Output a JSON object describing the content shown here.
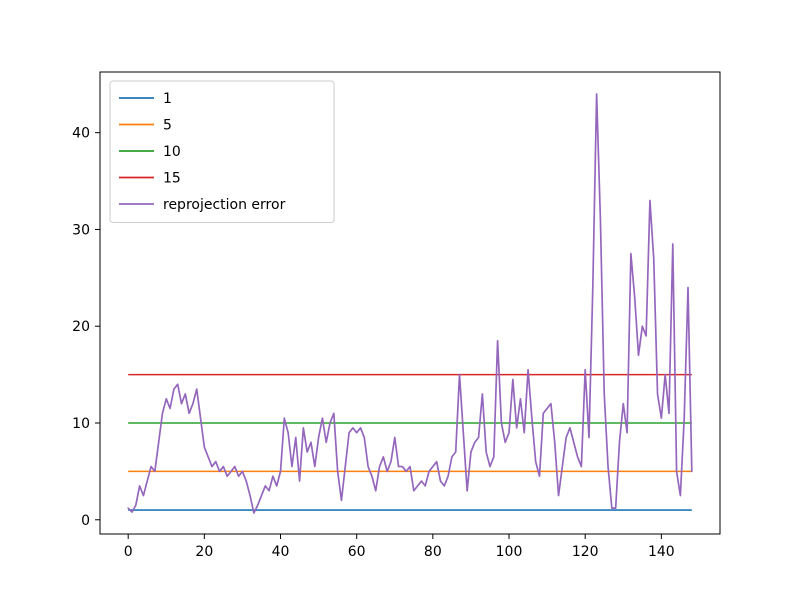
{
  "figure": {
    "background": "#ffffff",
    "axes_edge_color": "#000000",
    "legend_border_color": "#cccccc",
    "legend_background": "#ffffff"
  },
  "chart_data": {
    "type": "line",
    "title": "",
    "xlabel": "",
    "ylabel": "",
    "xlim": [
      -7.4,
      155.4
    ],
    "ylim": [
      -1.47,
      46.27
    ],
    "xticks": [
      0,
      20,
      40,
      60,
      80,
      100,
      120,
      140
    ],
    "yticks": [
      0,
      10,
      20,
      30,
      40
    ],
    "grid": false,
    "legend_position": "upper-left",
    "legend_entries": [
      "1",
      "5",
      "10",
      "15",
      "reprojection error"
    ],
    "series": [
      {
        "name": "1",
        "type": "hline",
        "y": 1,
        "color": "#1f77b4",
        "x_range": [
          0,
          148
        ]
      },
      {
        "name": "5",
        "type": "hline",
        "y": 5,
        "color": "#ff7f0e",
        "x_range": [
          0,
          148
        ]
      },
      {
        "name": "10",
        "type": "hline",
        "y": 10,
        "color": "#2ca02c",
        "x_range": [
          0,
          148
        ]
      },
      {
        "name": "15",
        "type": "hline",
        "y": 15,
        "color": "#d62728",
        "x_range": [
          0,
          148
        ]
      },
      {
        "name": "reprojection error",
        "type": "line",
        "color": "#9467bd",
        "x_start": 0,
        "x_step": 1,
        "values": [
          1.2,
          0.8,
          1.5,
          3.5,
          2.5,
          4.0,
          5.5,
          5.0,
          8.0,
          11.0,
          12.5,
          11.5,
          13.5,
          14.0,
          12.0,
          13.0,
          11.0,
          12.0,
          13.5,
          10.5,
          7.5,
          6.5,
          5.5,
          6.0,
          5.0,
          5.5,
          4.5,
          5.0,
          5.5,
          4.5,
          5.0,
          4.0,
          2.5,
          0.7,
          1.5,
          2.5,
          3.5,
          3.0,
          4.5,
          3.5,
          5.0,
          10.5,
          9.0,
          5.5,
          8.5,
          4.0,
          9.5,
          7.0,
          8.0,
          5.5,
          8.5,
          10.5,
          8.0,
          10.0,
          11.0,
          5.0,
          2.0,
          5.5,
          9.0,
          9.5,
          9.0,
          9.5,
          8.5,
          5.5,
          4.5,
          3.0,
          5.5,
          6.5,
          5.0,
          6.0,
          8.5,
          5.5,
          5.5,
          5.0,
          5.5,
          3.0,
          3.5,
          4.0,
          3.5,
          5.0,
          5.5,
          6.0,
          4.0,
          3.5,
          4.5,
          6.5,
          7.0,
          15.0,
          9.0,
          3.0,
          7.0,
          8.0,
          8.5,
          13.0,
          7.0,
          5.5,
          6.5,
          18.5,
          10.0,
          8.0,
          9.0,
          14.5,
          9.5,
          12.5,
          9.0,
          15.5,
          10.5,
          6.0,
          4.5,
          11.0,
          11.5,
          12.0,
          8.0,
          2.5,
          5.5,
          8.5,
          9.5,
          8.0,
          6.5,
          5.5,
          15.5,
          8.5,
          24.0,
          44.0,
          31.0,
          13.0,
          5.5,
          1.2,
          1.2,
          8.0,
          12.0,
          9.0,
          27.5,
          23.0,
          17.0,
          20.0,
          19.0,
          33.0,
          27.0,
          13.0,
          10.5,
          15.0,
          11.0,
          28.5,
          5.0,
          2.5,
          10.5,
          24.0,
          5.0
        ]
      }
    ]
  }
}
